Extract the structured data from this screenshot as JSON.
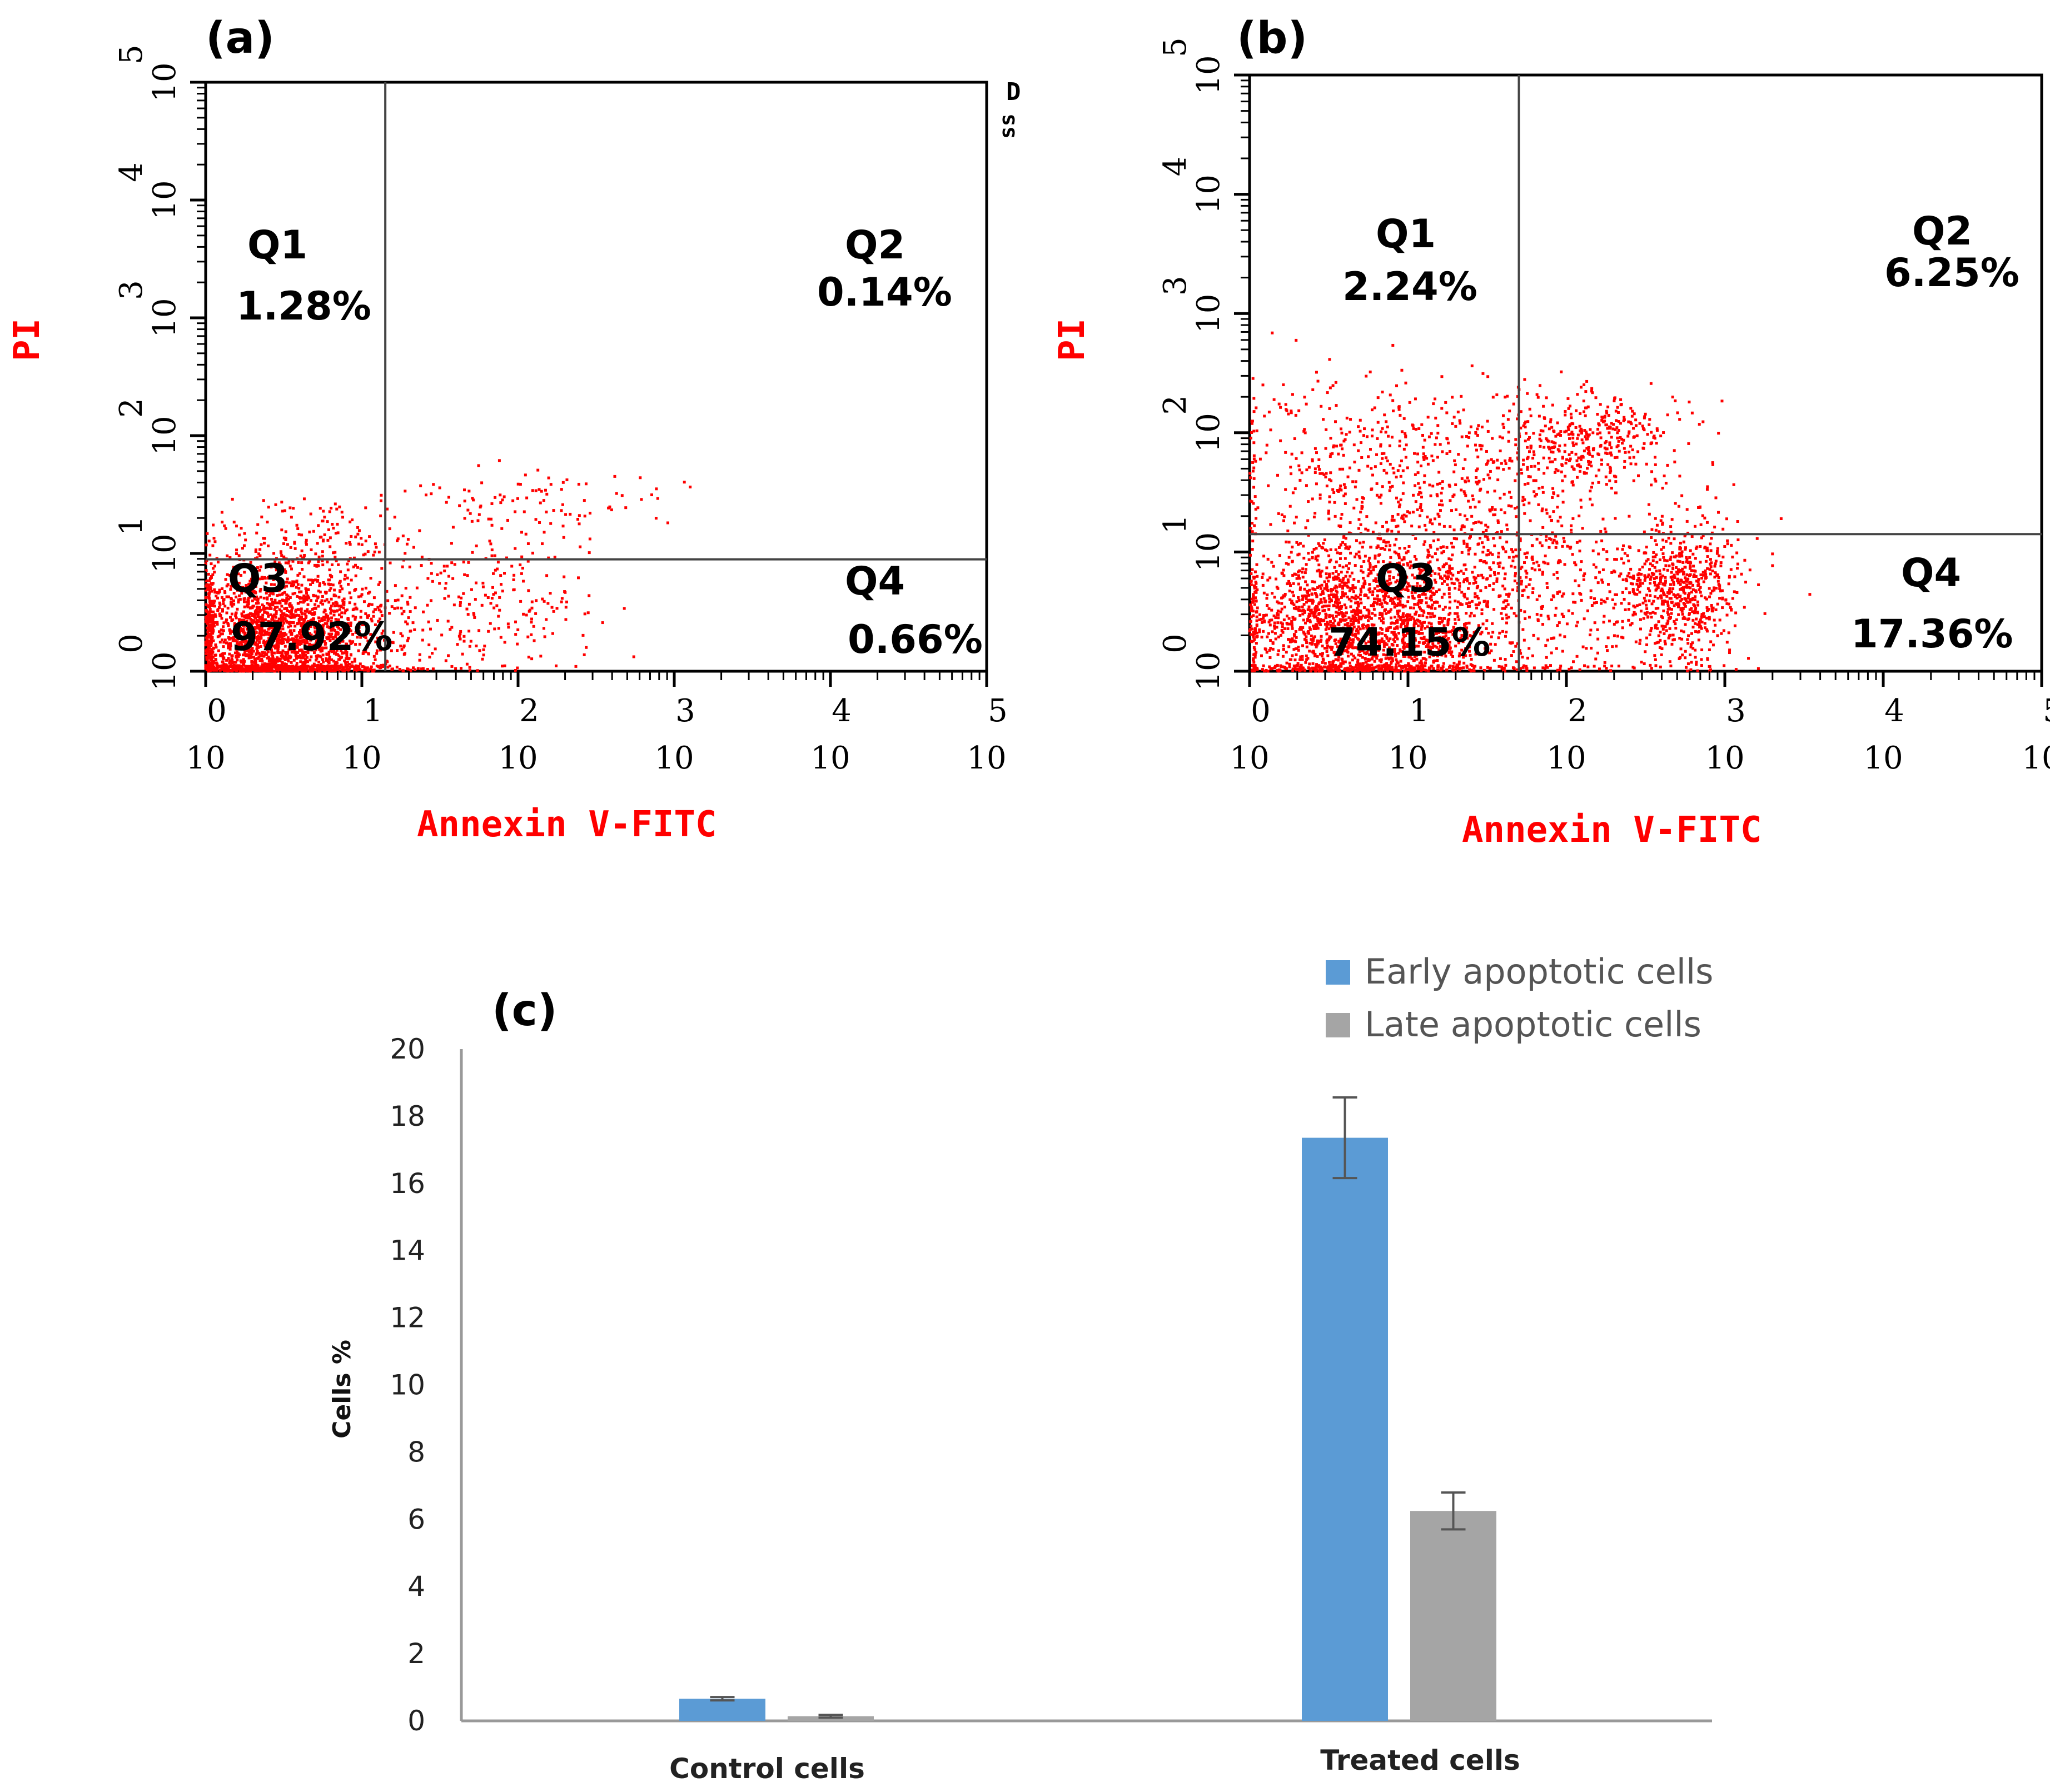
{
  "chart_data": [
    {
      "type": "scatter",
      "panel": "(a)",
      "title": "",
      "xlabel": "Annexin V-FITC",
      "ylabel": "PI",
      "x_scale": "log",
      "y_scale": "log",
      "xlim_exponent": [
        0,
        5
      ],
      "ylim_exponent": [
        0,
        5
      ],
      "tick_base": "10",
      "tick_exponents": [
        "0",
        "1",
        "2",
        "3",
        "4",
        "5"
      ],
      "gate_exponent": {
        "x": 1.15,
        "y": 0.95
      },
      "quadrants": [
        {
          "name": "Q1",
          "value": "1.28%"
        },
        {
          "name": "Q2",
          "value": "0.14%"
        },
        {
          "name": "Q3",
          "value": "97.92%"
        },
        {
          "name": "Q4",
          "value": "0.66%"
        }
      ],
      "side_marks": [
        "D",
        "ss"
      ],
      "point_color": "#ff0000",
      "clusters": [
        {
          "cx": 0.45,
          "cy": 0.25,
          "sx": 0.35,
          "sy": 0.32,
          "n": 2400
        },
        {
          "cx": 0.65,
          "cy": 1.1,
          "sx": 0.3,
          "sy": 0.18,
          "n": 160
        },
        {
          "cx": 1.75,
          "cy": 0.6,
          "sx": 0.35,
          "sy": 0.4,
          "n": 260
        },
        {
          "cx": 2.2,
          "cy": 1.45,
          "sx": 0.45,
          "sy": 0.12,
          "n": 70
        }
      ]
    },
    {
      "type": "scatter",
      "panel": "(b)",
      "title": "",
      "xlabel": "Annexin V-FITC",
      "ylabel": "PI",
      "x_scale": "log",
      "y_scale": "log",
      "xlim_exponent": [
        0,
        5
      ],
      "ylim_exponent": [
        0,
        5
      ],
      "tick_base": "10",
      "tick_exponents": [
        "0",
        "1",
        "2",
        "3",
        "4",
        "5"
      ],
      "gate_exponent": {
        "x": 1.7,
        "y": 1.15
      },
      "quadrants": [
        {
          "name": "Q1",
          "value": "2.24%"
        },
        {
          "name": "Q2",
          "value": "6.25%"
        },
        {
          "name": "Q3",
          "value": "74.15%"
        },
        {
          "name": "Q4",
          "value": "17.36%"
        }
      ],
      "point_color": "#ff0000",
      "clusters": [
        {
          "cx": 0.7,
          "cy": 0.4,
          "sx": 0.4,
          "sy": 0.35,
          "n": 1900
        },
        {
          "cx": 2.7,
          "cy": 0.65,
          "sx": 0.2,
          "sy": 0.28,
          "n": 650
        },
        {
          "cx": 2.15,
          "cy": 1.95,
          "sx": 0.3,
          "sy": 0.2,
          "n": 380
        },
        {
          "cx": 0.85,
          "cy": 1.8,
          "sx": 0.55,
          "sy": 0.35,
          "n": 420
        },
        {
          "cx": 1.6,
          "cy": 0.8,
          "sx": 0.6,
          "sy": 0.55,
          "n": 900
        }
      ]
    },
    {
      "type": "bar",
      "panel": "(c)",
      "title": "",
      "xlabel": "",
      "ylabel": "Cells %",
      "ylim": [
        0,
        20
      ],
      "yticks": [
        "0",
        "2",
        "4",
        "6",
        "8",
        "10",
        "12",
        "14",
        "16",
        "18",
        "20"
      ],
      "categories": [
        "Control cells",
        "Treated cells"
      ],
      "series": [
        {
          "name": "Early apoptotic cells",
          "color": "#5b9bd5",
          "values": [
            0.66,
            17.36
          ],
          "errors": [
            0.05,
            1.2
          ]
        },
        {
          "name": "Late apoptotic cells",
          "color": "#a5a5a5",
          "values": [
            0.14,
            6.25
          ],
          "errors": [
            0.04,
            0.55
          ]
        }
      ],
      "legend_position": "top-right"
    }
  ]
}
